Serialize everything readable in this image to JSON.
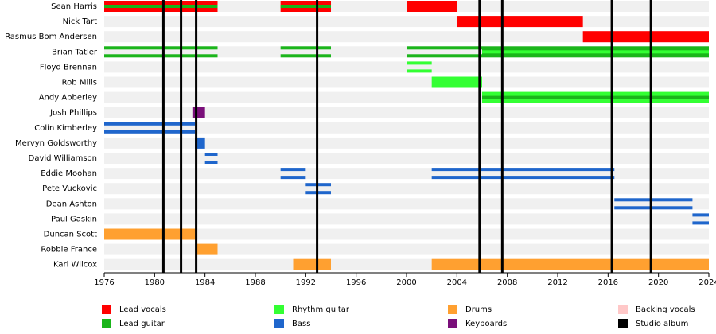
{
  "chart_data": {
    "type": "timeline",
    "xlim": [
      1976,
      2024
    ],
    "xticks": [
      1976,
      1980,
      1984,
      1988,
      1992,
      1996,
      2000,
      2004,
      2008,
      2012,
      2016,
      2020,
      2024
    ],
    "roles": [
      {
        "name": "Lead vocals",
        "color": "#ff0000"
      },
      {
        "name": "Lead guitar",
        "color": "#1ab51a"
      },
      {
        "name": "Rhythm guitar",
        "color": "#33ff33"
      },
      {
        "name": "Bass",
        "color": "#1f66cc"
      },
      {
        "name": "Drums",
        "color": "#ffa030"
      },
      {
        "name": "Keyboards",
        "color": "#7a0f7a"
      },
      {
        "name": "Backing vocals",
        "color": "#ffc8c8"
      },
      {
        "name": "Studio album",
        "color": "#000000"
      }
    ],
    "album_years": [
      1980.7,
      1982.1,
      1983.3,
      1992.9,
      2005.8,
      2007.6,
      2016.3,
      2019.4
    ],
    "members": [
      {
        "name": "Sean Harris",
        "bars": [
          {
            "start": 1976,
            "end": 1985,
            "role": "Lead vocals",
            "stripe": "Lead guitar"
          },
          {
            "start": 1990,
            "end": 1994,
            "role": "Lead vocals",
            "stripe": "Lead guitar"
          },
          {
            "start": 2000,
            "end": 2004,
            "role": "Lead vocals"
          }
        ]
      },
      {
        "name": "Nick Tart",
        "bars": [
          {
            "start": 2004,
            "end": 2014,
            "role": "Lead vocals"
          }
        ]
      },
      {
        "name": "Rasmus Bom Andersen",
        "bars": [
          {
            "start": 2014,
            "end": 2024,
            "role": "Lead vocals"
          }
        ]
      },
      {
        "name": "Brian Tatler",
        "bars": [
          {
            "start": 1976,
            "end": 1985,
            "role": "Lead guitar",
            "split": true
          },
          {
            "start": 1990,
            "end": 1994,
            "role": "Lead guitar",
            "split": true
          },
          {
            "start": 2000,
            "end": 2006,
            "role": "Lead guitar",
            "split": true
          },
          {
            "start": 2006,
            "end": 2024,
            "role": "Lead guitar",
            "stripe": "Rhythm guitar"
          }
        ]
      },
      {
        "name": "Floyd Brennan",
        "bars": [
          {
            "start": 2000,
            "end": 2002,
            "role": "Rhythm guitar",
            "split": true
          }
        ]
      },
      {
        "name": "Rob Mills",
        "bars": [
          {
            "start": 2002,
            "end": 2006,
            "role": "Rhythm guitar"
          }
        ]
      },
      {
        "name": "Andy Abberley",
        "bars": [
          {
            "start": 2006,
            "end": 2024,
            "role": "Rhythm guitar",
            "stripe": "Lead guitar"
          }
        ]
      },
      {
        "name": "Josh Phillips",
        "bars": [
          {
            "start": 1983,
            "end": 1984,
            "role": "Keyboards"
          }
        ]
      },
      {
        "name": "Colin Kimberley",
        "bars": [
          {
            "start": 1976,
            "end": 1983.2,
            "role": "Bass",
            "split": true
          }
        ]
      },
      {
        "name": "Mervyn Goldsworthy",
        "bars": [
          {
            "start": 1983.2,
            "end": 1984,
            "role": "Bass"
          }
        ]
      },
      {
        "name": "David Williamson",
        "bars": [
          {
            "start": 1984,
            "end": 1985,
            "role": "Bass",
            "split": true
          }
        ]
      },
      {
        "name": "Eddie Moohan",
        "bars": [
          {
            "start": 1990,
            "end": 1992,
            "role": "Bass",
            "split": true
          },
          {
            "start": 2002,
            "end": 2016.5,
            "role": "Bass",
            "split": true
          }
        ]
      },
      {
        "name": "Pete Vuckovic",
        "bars": [
          {
            "start": 1992,
            "end": 1994,
            "role": "Bass",
            "split": true
          }
        ]
      },
      {
        "name": "Dean Ashton",
        "bars": [
          {
            "start": 2016.5,
            "end": 2022.7,
            "role": "Bass",
            "split": true
          }
        ]
      },
      {
        "name": "Paul Gaskin",
        "bars": [
          {
            "start": 2022.7,
            "end": 2024,
            "role": "Bass",
            "split": true
          }
        ]
      },
      {
        "name": "Duncan Scott",
        "bars": [
          {
            "start": 1976,
            "end": 1983.3,
            "role": "Drums"
          }
        ]
      },
      {
        "name": "Robbie France",
        "bars": [
          {
            "start": 1983.3,
            "end": 1985,
            "role": "Drums"
          }
        ]
      },
      {
        "name": "Karl Wilcox",
        "bars": [
          {
            "start": 1991,
            "end": 1994,
            "role": "Drums"
          },
          {
            "start": 2002,
            "end": 2024,
            "role": "Drums"
          }
        ]
      }
    ]
  }
}
